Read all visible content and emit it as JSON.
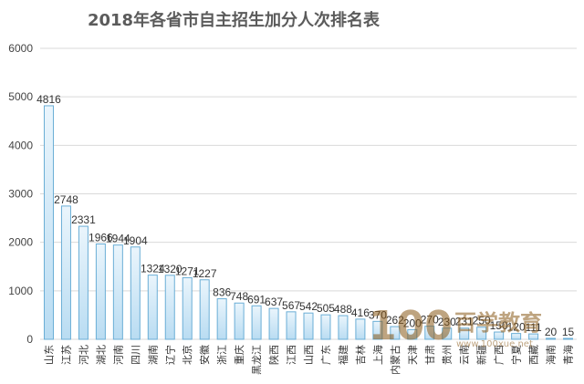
{
  "chart_data": {
    "type": "bar",
    "title": "2018年各省市自主招生加分人次排名表",
    "xlabel": "",
    "ylabel": "",
    "ylim": [
      0,
      6000
    ],
    "yticks": [
      0,
      1000,
      2000,
      3000,
      4000,
      5000,
      6000
    ],
    "grid": true,
    "legend": "none",
    "categories": [
      "山东",
      "江苏",
      "河北",
      "湖北",
      "河南",
      "四川",
      "湖南",
      "辽宁",
      "北京",
      "安徽",
      "浙江",
      "重庆",
      "黑龙江",
      "陕西",
      "江西",
      "山西",
      "广东",
      "福建",
      "吉林",
      "上海",
      "内蒙古",
      "天津",
      "甘肃",
      "贵州",
      "云南",
      "新疆",
      "广西",
      "宁夏",
      "西藏",
      "海南",
      "青海"
    ],
    "values": [
      4816,
      2748,
      2331,
      1966,
      1944,
      1904,
      1324,
      1320,
      1271,
      1227,
      836,
      748,
      691,
      637,
      567,
      542,
      505,
      488,
      416,
      370,
      262,
      200,
      270,
      230,
      231,
      250,
      150,
      120,
      111,
      20,
      15
    ],
    "colors": {
      "bar_top": "#eaf5fc",
      "bar_bottom": "#b9dcf2",
      "bar_stroke": "#6aaed6"
    }
  },
  "watermark": {
    "logo": "100",
    "brand": "百学教育",
    "url": "www.100xue.net"
  }
}
